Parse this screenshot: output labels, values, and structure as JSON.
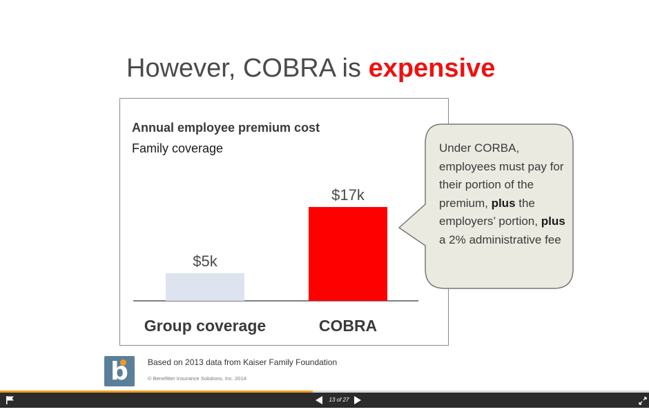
{
  "slide": {
    "title_prefix": "However, COBRA is ",
    "title_accent": "expensive",
    "accent_color": "#ee1111"
  },
  "chart_data": {
    "type": "bar",
    "title": "Annual employee premium cost",
    "subtitle": "Family coverage",
    "categories": [
      "Group coverage",
      "COBRA"
    ],
    "values": [
      5,
      17
    ],
    "value_labels": [
      "$5k",
      "$17k"
    ],
    "unit": "$k",
    "colors": [
      "#dde3ef",
      "#ff0000"
    ],
    "grid": false
  },
  "callout": {
    "text_1": "Under CORBA, employees must pay for their portion of the premium, ",
    "bold_1": "plus",
    "text_2": " the employers’ portion, ",
    "bold_2": "plus",
    "text_3": " a 2% administrative fee"
  },
  "footer": {
    "logo_letter": "b",
    "source": "Based on 2013 data from Kaiser Family Foundation",
    "copyright": "© Benefitter Insurance Solutions, Inc. 2014"
  },
  "player": {
    "page_label": "13 of 27",
    "current_page": 13,
    "total_pages": 27,
    "progress_color": "#f39a1e",
    "icons": {
      "flag": "flag-icon",
      "prev": "play-left-icon",
      "next": "play-right-icon",
      "expand": "expand-icon"
    }
  }
}
